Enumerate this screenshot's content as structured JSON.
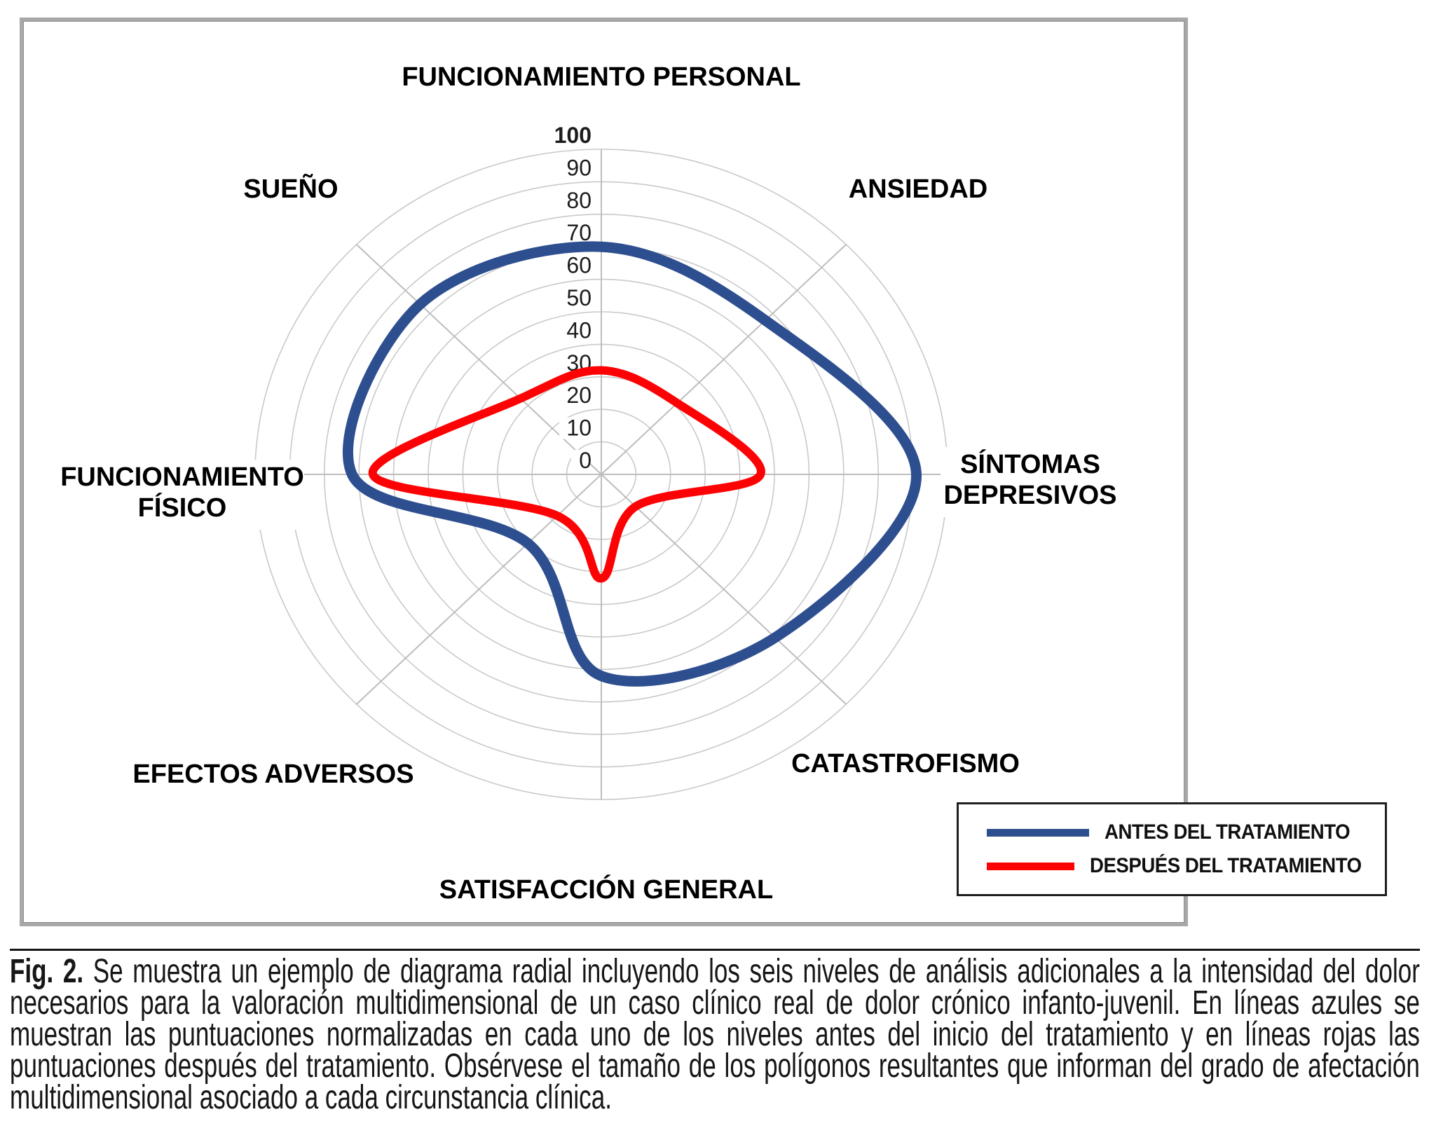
{
  "chart_data": {
    "type": "radar",
    "title": "",
    "axes": [
      "FUNCIONAMIENTO PERSONAL",
      "ANSIEDAD",
      "SÍNTOMAS DEPRESIVOS",
      "CATASTROFISMO",
      "SATISFACCIÓN GENERAL",
      "EFECTOS ADVERSOS",
      "FUNCIONAMIENTO FÍSICO",
      "SUEÑO"
    ],
    "series": [
      {
        "name": "ANTES DEL TRATAMIENTO",
        "color": "#2E4F8F",
        "values": [
          70,
          67,
          91,
          71,
          62,
          30,
          72,
          74
        ]
      },
      {
        "name": "DESPUÉS DEL TRATAMIENTO",
        "color": "#FC0204",
        "values": [
          32,
          31,
          46,
          14,
          32,
          18,
          66,
          33
        ]
      }
    ],
    "radial_ticks": [
      0,
      10,
      20,
      30,
      40,
      50,
      60,
      70,
      80,
      90,
      100
    ],
    "rmin": 0,
    "rmax": 100,
    "grid": true,
    "smooth": true,
    "grid_color": "#c9c9c9",
    "spoke_color": "#bdbdbd",
    "tick_color": "#1c1c1c",
    "bold_tick": 100,
    "legend_position": "bottom-right"
  },
  "legend": {
    "items": [
      {
        "label": "ANTES DEL TRATAMIENTO",
        "color": "#2E4F8F"
      },
      {
        "label": "DESPUÉS DEL TRATAMIENTO",
        "color": "#FC0204"
      }
    ]
  },
  "caption": {
    "prefix": "Fig. 2.",
    "text": "Se muestra un ejemplo de diagrama radial incluyendo los seis niveles de análisis adicionales a la intensidad del dolor necesarios para la valoración multidimensional de un caso clínico real de dolor crónico infanto-juvenil. En líneas azules se muestran las puntuaciones normalizadas en cada uno de los niveles antes del inicio del tratamiento y en líneas rojas las puntuaciones después del tratamiento. Obsérvese el tamaño de los polígonos resultantes que informan del grado de afectación multidimensional asociado a cada circunstancia clínica."
  }
}
